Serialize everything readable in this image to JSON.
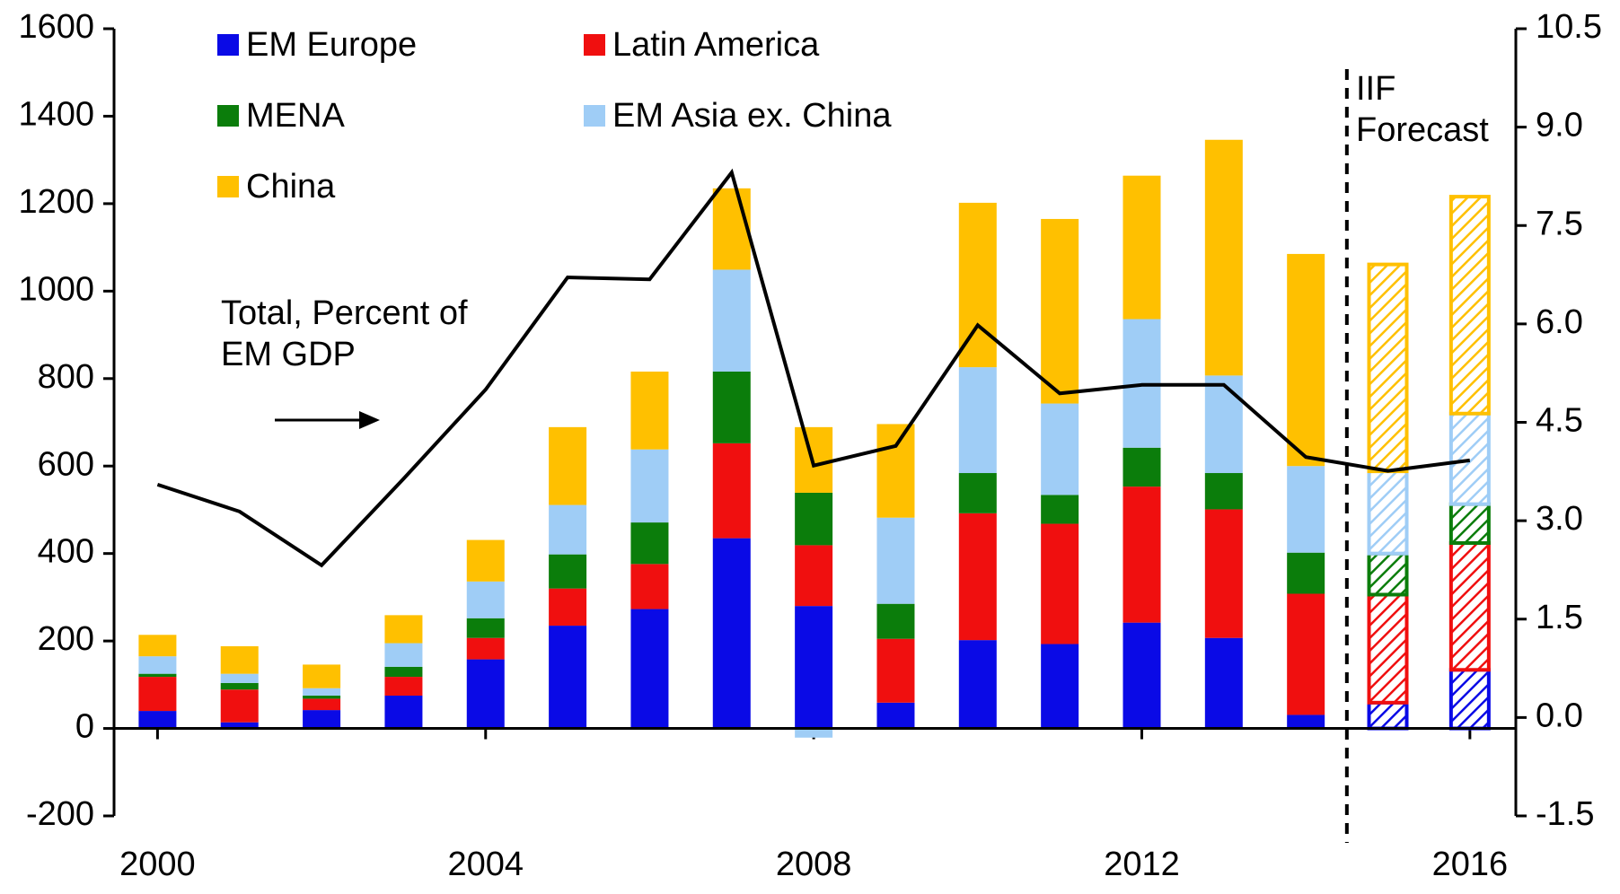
{
  "chart_data": {
    "type": "bar",
    "x": [
      2000,
      2001,
      2002,
      2003,
      2004,
      2005,
      2006,
      2007,
      2008,
      2009,
      2010,
      2011,
      2012,
      2013,
      2014,
      2015,
      2016
    ],
    "xlim": [
      1999.47,
      2016.56
    ],
    "xticks": [
      2000,
      2004,
      2008,
      2012,
      2016
    ],
    "ylim": [
      -200,
      1600
    ],
    "yticks": [
      -200,
      0,
      200,
      400,
      600,
      800,
      1000,
      1200,
      1400,
      1600
    ],
    "y2lim": [
      -1.5,
      10.5
    ],
    "y2ticks": [
      -1.5,
      {
        "value": 0,
        "label": "0.0"
      },
      1.5,
      {
        "value": 3,
        "label": "3.0"
      },
      4.5,
      {
        "value": 6,
        "label": "6.0"
      },
      7.5,
      {
        "value": 9,
        "label": "9.0"
      },
      10.5
    ],
    "stacked": true,
    "hatched_from": 2015,
    "annotation": "IIF Forecast",
    "series": [
      {
        "name": "EM Europe",
        "color": "#0a0ae6",
        "values": [
          40,
          14,
          42,
          75,
          158,
          235,
          273,
          435,
          280,
          59,
          202,
          193,
          242,
          207,
          31,
          59,
          134
        ]
      },
      {
        "name": "Latin America",
        "color": "#f00f0f",
        "values": [
          78,
          75,
          26,
          43,
          49,
          85,
          103,
          217,
          139,
          146,
          290,
          275,
          311,
          294,
          277,
          247,
          290
        ]
      },
      {
        "name": "MENA",
        "color": "#0b7d0b",
        "values": [
          7,
          15,
          7,
          23,
          45,
          78,
          95,
          164,
          120,
          80,
          92,
          66,
          89,
          83,
          94,
          94,
          89
        ]
      },
      {
        "name": "EM Asia ex. China",
        "color": "#9fcdf6",
        "values": [
          40,
          21,
          17,
          54,
          84,
          113,
          167,
          233,
          -21,
          197,
          242,
          209,
          294,
          223,
          198,
          188,
          207
        ]
      },
      {
        "name": "China",
        "color": "#ffc000",
        "values": [
          49,
          63,
          54,
          64,
          95,
          178,
          178,
          186,
          150,
          214,
          376,
          422,
          328,
          539,
          485,
          473,
          496
        ]
      },
      {
        "name": "Total, Percent of EM GDP",
        "type": "line",
        "axis": "y2",
        "color": "#000000",
        "values": [
          3.55,
          3.14,
          2.32,
          3.64,
          5.0,
          6.71,
          6.68,
          8.31,
          3.84,
          4.14,
          5.98,
          4.94,
          5.07,
          5.07,
          3.97,
          3.76,
          3.92
        ]
      }
    ]
  }
}
